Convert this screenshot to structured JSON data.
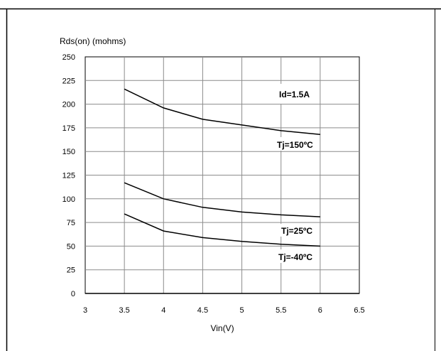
{
  "chart_data": {
    "type": "line",
    "ylabel": "Rds(on) (mohms)",
    "xlabel": "Vin(V)",
    "xlim": [
      3,
      6.5
    ],
    "ylim": [
      0,
      250
    ],
    "x_ticks": [
      3,
      3.5,
      4,
      4.5,
      5,
      5.5,
      6,
      6.5
    ],
    "y_ticks": [
      0,
      25,
      50,
      75,
      100,
      125,
      150,
      175,
      200,
      225,
      250
    ],
    "x_tick_labels": [
      "3",
      "3.5",
      "4",
      "4.5",
      "5",
      "5.5",
      "6",
      "6.5"
    ],
    "y_tick_labels": [
      "0",
      "25",
      "50",
      "75",
      "100",
      "125",
      "150",
      "175",
      "200",
      "225",
      "250"
    ],
    "grid": true,
    "annotation": "Id=1.5A",
    "series": [
      {
        "name": "Tj=150ºC",
        "x": [
          3.5,
          4,
          4.5,
          5,
          5.5,
          6
        ],
        "values": [
          216,
          196,
          184,
          178,
          172,
          168
        ]
      },
      {
        "name": "Tj=25ºC",
        "x": [
          3.5,
          4,
          4.5,
          5,
          5.5,
          6
        ],
        "values": [
          117,
          100,
          91,
          86,
          83,
          81
        ]
      },
      {
        "name": "Tj=-40ºC",
        "x": [
          3.5,
          4,
          4.5,
          5,
          5.5,
          6
        ],
        "values": [
          84,
          66,
          59,
          55,
          52,
          50
        ]
      }
    ]
  }
}
